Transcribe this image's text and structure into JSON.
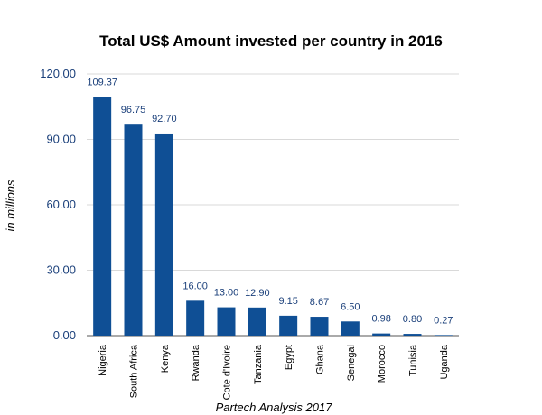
{
  "chart_data": {
    "type": "bar",
    "title": "Total US$ Amount invested per country in 2016",
    "ylabel": "in millions",
    "xlabel": "Partech Analysis 2017",
    "ylim": [
      0,
      120
    ],
    "yticks": [
      "0.00",
      "30.00",
      "60.00",
      "90.00",
      "120.00"
    ],
    "grid": true,
    "bar_color": "#0f4f95",
    "categories": [
      "Nigeria",
      "South Africa",
      "Kenya",
      "Rwanda",
      "Cote d'Ivoire",
      "Tanzania",
      "Egypt",
      "Ghana",
      "Senegal",
      "Morocco",
      "Tunisia",
      "Uganda"
    ],
    "values": [
      109.37,
      96.75,
      92.7,
      16.0,
      13.0,
      12.9,
      9.15,
      8.67,
      6.5,
      0.98,
      0.8,
      0.27
    ],
    "data_labels": [
      "109.37",
      "96.75",
      "92.70",
      "16.00",
      "13.00",
      "12.90",
      "9.15",
      "8.67",
      "6.50",
      "0.98",
      "0.80",
      "0.27"
    ]
  }
}
